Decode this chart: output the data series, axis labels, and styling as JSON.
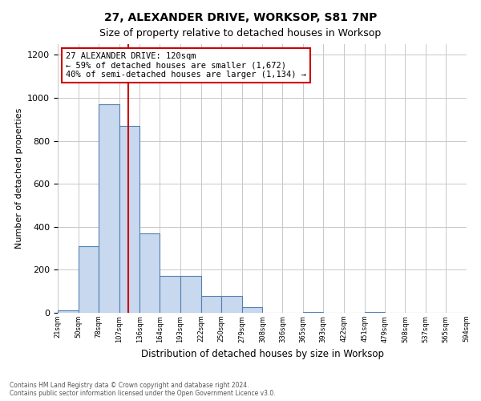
{
  "title1": "27, ALEXANDER DRIVE, WORKSOP, S81 7NP",
  "title2": "Size of property relative to detached houses in Worksop",
  "xlabel": "Distribution of detached houses by size in Worksop",
  "ylabel": "Number of detached properties",
  "bin_edges": [
    21,
    50,
    78,
    107,
    136,
    164,
    193,
    222,
    250,
    279,
    308,
    336,
    365,
    393,
    422,
    451,
    479,
    508,
    537,
    565,
    594
  ],
  "bar_heights": [
    10,
    310,
    970,
    870,
    370,
    170,
    170,
    80,
    80,
    25,
    0,
    0,
    5,
    0,
    0,
    5,
    0,
    0,
    0,
    0
  ],
  "bar_color": "#c8d8ee",
  "bar_edge_color": "#5080b0",
  "property_line_x": 120,
  "annotation_line1": "27 ALEXANDER DRIVE: 120sqm",
  "annotation_line2": "← 59% of detached houses are smaller (1,672)",
  "annotation_line3": "40% of semi-detached houses are larger (1,134) →",
  "annotation_box_edge": "#cc0000",
  "red_line_color": "#cc0000",
  "ylim": [
    0,
    1250
  ],
  "yticks": [
    0,
    200,
    400,
    600,
    800,
    1000,
    1200
  ],
  "footer1": "Contains HM Land Registry data © Crown copyright and database right 2024.",
  "footer2": "Contains public sector information licensed under the Open Government Licence v3.0.",
  "background_color": "#ffffff",
  "grid_color": "#c8c8c8"
}
